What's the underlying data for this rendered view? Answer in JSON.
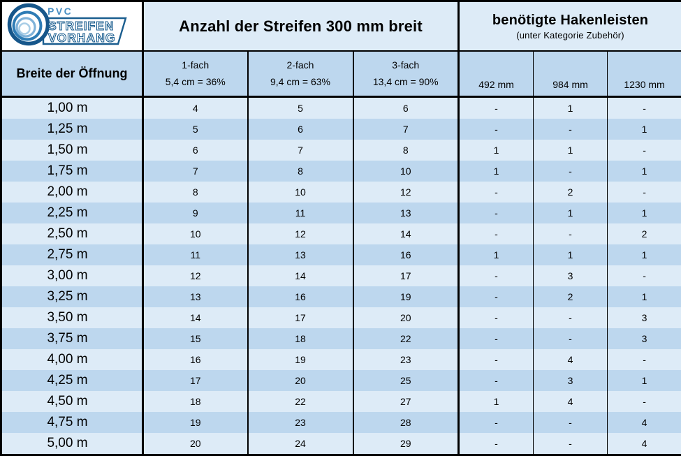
{
  "logo": {
    "pvc": "PVC",
    "line1": "STREIFEN",
    "line2": "VORHANG"
  },
  "header": {
    "strips_title": "Anzahl der Streifen 300 mm breit",
    "hooks_title": "benötigte Hakenleisten",
    "hooks_subtitle": "(unter Kategorie Zubehör)",
    "width_label": "Breite der Öffnung",
    "strip_columns": [
      {
        "line1": "1-fach",
        "line2": "5,4 cm = 36%"
      },
      {
        "line1": "2-fach",
        "line2": "9,4 cm = 63%"
      },
      {
        "line1": "3-fach",
        "line2": "13,4 cm = 90%"
      }
    ],
    "hook_columns": [
      "492 mm",
      "984 mm",
      "1230 mm"
    ]
  },
  "chart_data": {
    "type": "table",
    "title": "Anzahl der Streifen 300 mm breit / benötigte Hakenleisten (unter Kategorie Zubehör)",
    "columns": [
      "Breite der Öffnung",
      "1-fach 5,4 cm = 36%",
      "2-fach 9,4 cm = 63%",
      "3-fach 13,4 cm = 90%",
      "492 mm",
      "984 mm",
      "1230 mm"
    ],
    "rows": [
      [
        "1,00 m",
        "4",
        "5",
        "6",
        "-",
        "1",
        "-"
      ],
      [
        "1,25 m",
        "5",
        "6",
        "7",
        "-",
        "-",
        "1"
      ],
      [
        "1,50 m",
        "6",
        "7",
        "8",
        "1",
        "1",
        "-"
      ],
      [
        "1,75 m",
        "7",
        "8",
        "10",
        "1",
        "-",
        "1"
      ],
      [
        "2,00 m",
        "8",
        "10",
        "12",
        "-",
        "2",
        "-"
      ],
      [
        "2,25 m",
        "9",
        "11",
        "13",
        "-",
        "1",
        "1"
      ],
      [
        "2,50 m",
        "10",
        "12",
        "14",
        "-",
        "-",
        "2"
      ],
      [
        "2,75 m",
        "11",
        "13",
        "16",
        "1",
        "1",
        "1"
      ],
      [
        "3,00 m",
        "12",
        "14",
        "17",
        "-",
        "3",
        "-"
      ],
      [
        "3,25 m",
        "13",
        "16",
        "19",
        "-",
        "2",
        "1"
      ],
      [
        "3,50 m",
        "14",
        "17",
        "20",
        "-",
        "-",
        "3"
      ],
      [
        "3,75 m",
        "15",
        "18",
        "22",
        "-",
        "-",
        "3"
      ],
      [
        "4,00 m",
        "16",
        "19",
        "23",
        "-",
        "4",
        "-"
      ],
      [
        "4,25 m",
        "17",
        "20",
        "25",
        "-",
        "3",
        "1"
      ],
      [
        "4,50 m",
        "18",
        "22",
        "27",
        "1",
        "4",
        "-"
      ],
      [
        "4,75 m",
        "19",
        "23",
        "28",
        "-",
        "-",
        "4"
      ],
      [
        "5,00 m",
        "20",
        "24",
        "29",
        "-",
        "-",
        "4"
      ]
    ]
  },
  "colors": {
    "border": "#000000",
    "row_light": "#DDEBF7",
    "row_dark": "#BDD7EE",
    "header_light": "#DDEBF7",
    "header_mid": "#BDD7EE",
    "logo_blue_dark": "#16568a",
    "logo_blue_mid": "#2e7cb5",
    "logo_blue_light": "#7fb2d9",
    "logo_blue_pale": "#a8cde6",
    "logo_pvc_blue": "#4a90c4",
    "logo_text_outline": "#1b5e8f"
  }
}
